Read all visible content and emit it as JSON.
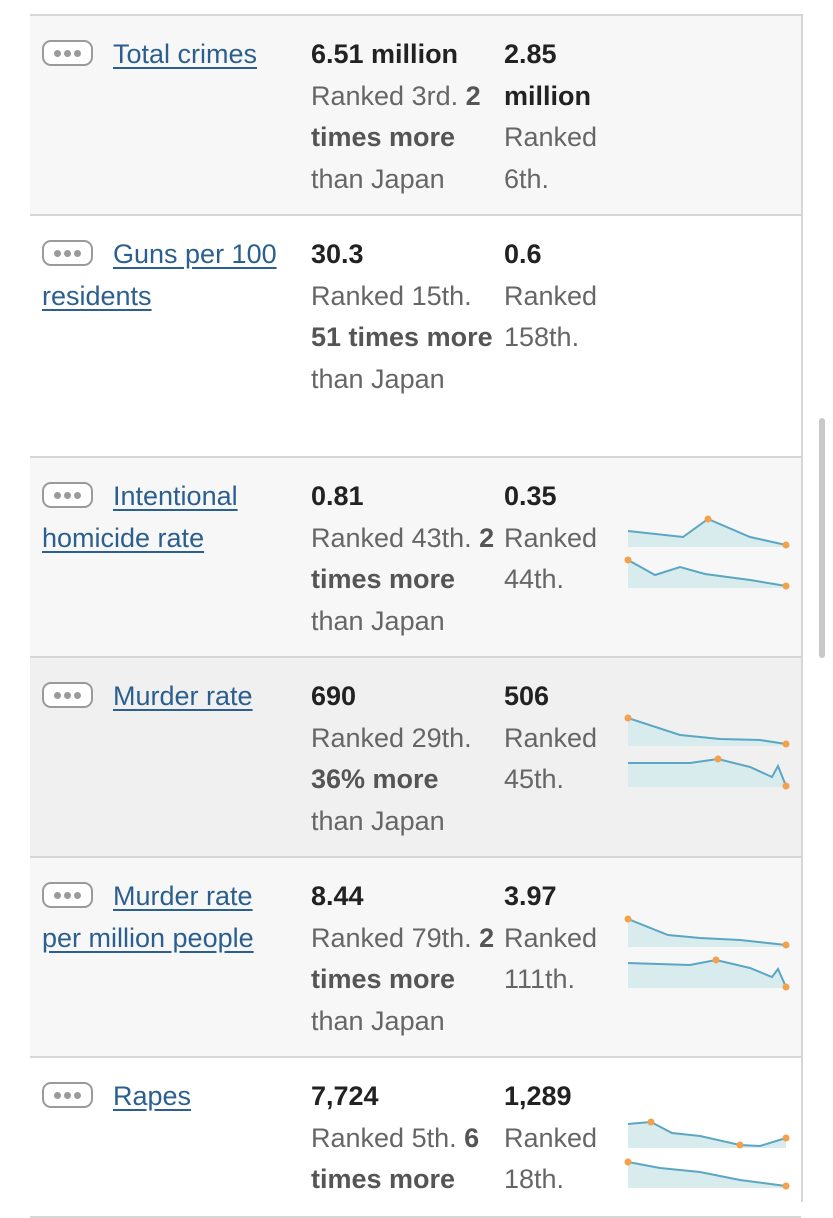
{
  "rows": [
    {
      "label": "Total crimes",
      "value_1": "6.51 million",
      "rank_1": "Ranked 3rd.",
      "comparison_bold": "2 times more",
      "comparison_rest": "than Japan",
      "value_2": "2.85 million",
      "rank_2": "Ranked 6th."
    },
    {
      "label": "Guns per 100 residents",
      "value_1": "30.3",
      "rank_1": "Ranked 15th.",
      "comparison_bold": "51 times more",
      "comparison_rest": "than Japan",
      "value_2": "0.6",
      "rank_2": "Ranked 158th."
    },
    {
      "label": "Intentional homicide rate",
      "value_1": "0.81",
      "rank_1": "Ranked 43th.",
      "comparison_bold": "2 times more",
      "comparison_rest": "than Japan",
      "value_2": "0.35",
      "rank_2": "Ranked 44th."
    },
    {
      "label": "Murder rate",
      "value_1": "690",
      "rank_1": "Ranked 29th.",
      "comparison_bold": "36% more",
      "comparison_rest": "than Japan",
      "value_2": "506",
      "rank_2": "Ranked 45th."
    },
    {
      "label": "Murder rate per million people",
      "value_1": "8.44",
      "rank_1": "Ranked 79th.",
      "comparison_bold": "2 times more",
      "comparison_rest": "than Japan",
      "value_2": "3.97",
      "rank_2": "Ranked 111th."
    },
    {
      "label": "Rapes",
      "value_1": "7,724",
      "rank_1": "Ranked 5th.",
      "comparison_bold": "6 times more",
      "value_2": "1,289",
      "rank_2": "Ranked 18th."
    }
  ]
}
